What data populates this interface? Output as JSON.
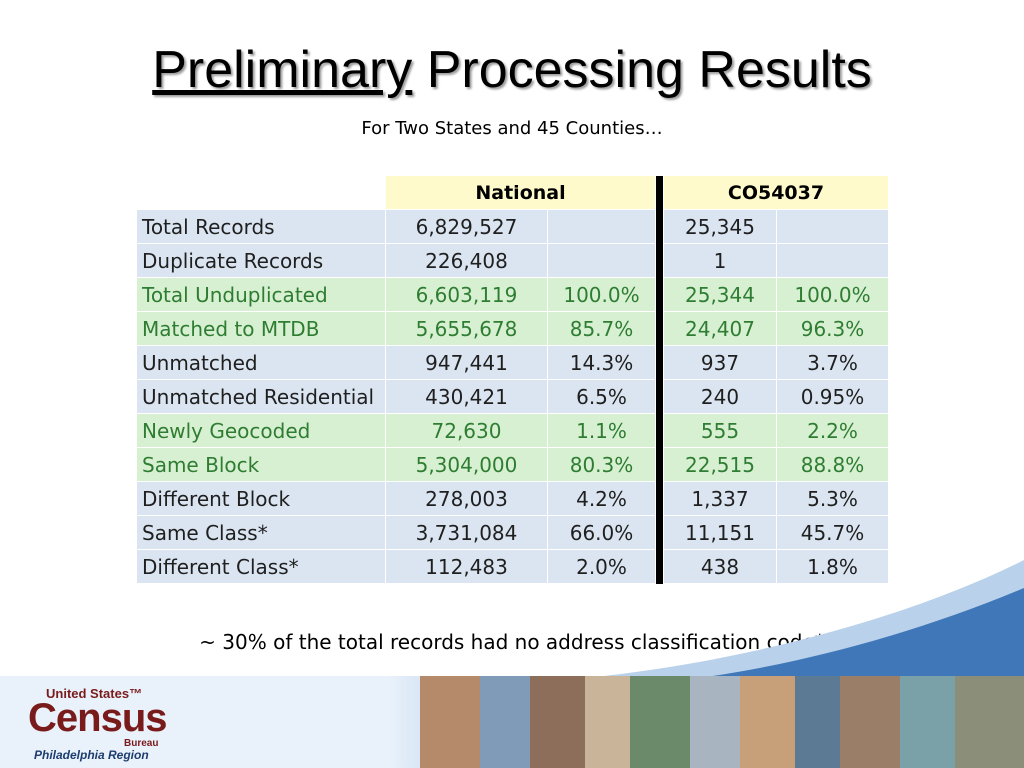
{
  "title": {
    "underlined": "Preliminary",
    "rest": " Processing Results"
  },
  "subtitle": "For Two States and 45 Counties…",
  "table": {
    "headers": [
      "National",
      "CO54037"
    ],
    "rows": [
      {
        "label": "Total Records",
        "nat": "6,829,527",
        "nat_pct": "",
        "co": "25,345",
        "co_pct": "",
        "style": "grey"
      },
      {
        "label": "Duplicate Records",
        "nat": "226,408",
        "nat_pct": "",
        "co": "1",
        "co_pct": "",
        "style": "grey"
      },
      {
        "label": "Total Unduplicated",
        "nat": "6,603,119",
        "nat_pct": "100.0%",
        "co": "25,344",
        "co_pct": "100.0%",
        "style": "green"
      },
      {
        "label": "Matched to MTDB",
        "nat": "5,655,678",
        "nat_pct": "85.7%",
        "co": "24,407",
        "co_pct": "96.3%",
        "style": "green"
      },
      {
        "label": "Unmatched",
        "nat": "947,441",
        "nat_pct": "14.3%",
        "co": "937",
        "co_pct": "3.7%",
        "style": "grey"
      },
      {
        "label": "Unmatched Residential",
        "nat": "430,421",
        "nat_pct": "6.5%",
        "co": "240",
        "co_pct": "0.95%",
        "style": "grey"
      },
      {
        "label": "Newly Geocoded",
        "nat": "72,630",
        "nat_pct": "1.1%",
        "co": "555",
        "co_pct": "2.2%",
        "style": "green"
      },
      {
        "label": "Same Block",
        "nat": "5,304,000",
        "nat_pct": "80.3%",
        "co": "22,515",
        "co_pct": "88.8%",
        "style": "green"
      },
      {
        "label": "Different Block",
        "nat": "278,003",
        "nat_pct": "4.2%",
        "co": "1,337",
        "co_pct": "5.3%",
        "style": "grey"
      },
      {
        "label": "Same Class*",
        "nat": "3,731,084",
        "nat_pct": "66.0%",
        "co": "11,151",
        "co_pct": "45.7%",
        "style": "grey"
      },
      {
        "label": "Different Class*",
        "nat": "112,483",
        "nat_pct": "2.0%",
        "co": "438",
        "co_pct": "1.8%",
        "style": "grey"
      }
    ]
  },
  "note": "~ 30% of the total records had no address classification code*",
  "logo": {
    "line1": "United States™",
    "line2": "Census",
    "line3": "Bureau",
    "line4": "Philadelphia Region"
  },
  "colors": {
    "row_grey": "#dbe5f1",
    "row_green": "#d8f0d2",
    "header": "#fffacb",
    "logo_red": "#7a1b1b"
  }
}
